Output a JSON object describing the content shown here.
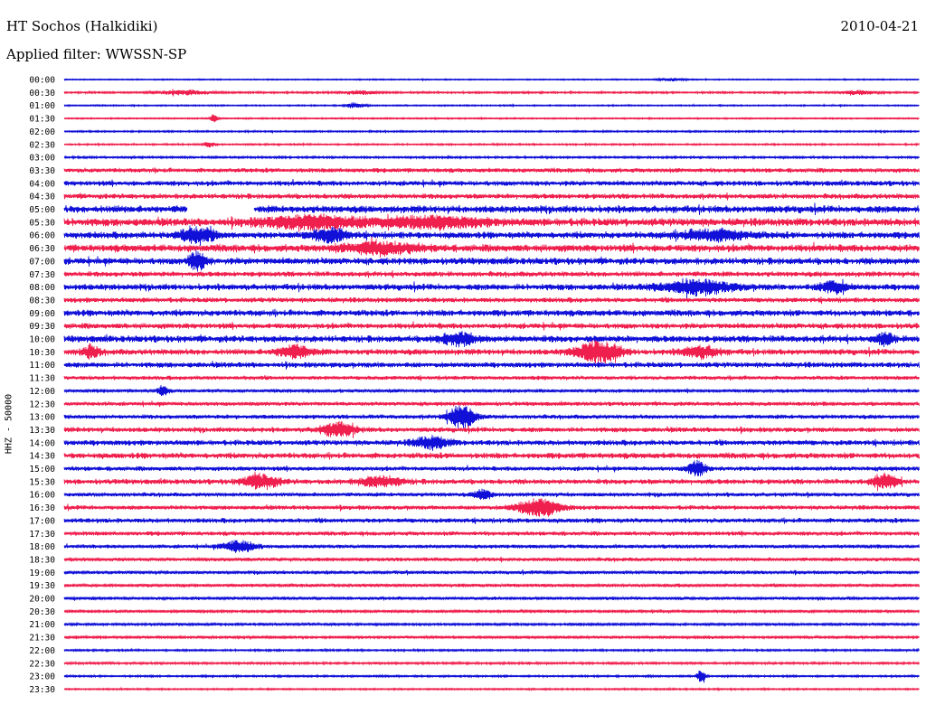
{
  "header": {
    "station": "HT Sochos (Halkidiki)",
    "date": "2010-04-21",
    "filter": "Applied filter: WWSSN-SP"
  },
  "colors": {
    "odd": "#1010d8",
    "even": "#f0204e"
  },
  "chart_data": {
    "type": "line",
    "title": "HT Sochos (Halkidiki)",
    "ylabel": "HHZ - 50000",
    "xlabel": "",
    "grid": false,
    "categories": [
      "00:00",
      "00:30",
      "01:00",
      "01:30",
      "02:00",
      "02:30",
      "03:00",
      "03:30",
      "04:00",
      "04:30",
      "05:00",
      "05:30",
      "06:00",
      "06:30",
      "07:00",
      "07:30",
      "08:00",
      "08:30",
      "09:00",
      "09:30",
      "10:00",
      "10:30",
      "11:00",
      "11:30",
      "12:00",
      "12:30",
      "13:00",
      "13:30",
      "14:00",
      "14:30",
      "15:00",
      "15:30",
      "16:00",
      "16:30",
      "17:00",
      "17:30",
      "18:00",
      "18:30",
      "19:00",
      "19:30",
      "20:00",
      "20:30",
      "21:00",
      "21:30",
      "22:00",
      "22:30",
      "23:00",
      "23:30"
    ],
    "noise_level": [
      0.5,
      0.8,
      0.6,
      0.6,
      0.7,
      0.7,
      0.9,
      2.0,
      2.3,
      2.3,
      3.2,
      3.5,
      3.0,
      3.3,
      3.0,
      2.3,
      2.8,
      2.2,
      2.8,
      2.5,
      3.0,
      2.6,
      2.4,
      1.8,
      1.6,
      1.8,
      1.9,
      2.2,
      2.4,
      2.6,
      2.0,
      2.3,
      1.8,
      1.9,
      2.1,
      1.9,
      1.6,
      1.7,
      1.5,
      1.5,
      1.4,
      1.2,
      1.2,
      1.2,
      0.8,
      1.0,
      0.8,
      0.7
    ],
    "gaps": [
      {
        "trace": "05:00",
        "from": 0.144,
        "to": 0.222
      }
    ],
    "events": [
      {
        "trace": "00:00",
        "at": 0.71,
        "amp": 1.5,
        "width": 0.015
      },
      {
        "trace": "00:30",
        "at": 0.14,
        "amp": 2.5,
        "width": 0.03
      },
      {
        "trace": "00:30",
        "at": 0.345,
        "amp": 2,
        "width": 0.02
      },
      {
        "trace": "00:30",
        "at": 0.93,
        "amp": 2,
        "width": 0.02
      },
      {
        "trace": "01:00",
        "at": 0.34,
        "amp": 3,
        "width": 0.01
      },
      {
        "trace": "01:30",
        "at": 0.175,
        "amp": 5,
        "width": 0.004
      },
      {
        "trace": "02:30",
        "at": 0.17,
        "amp": 3,
        "width": 0.006
      },
      {
        "trace": "05:30",
        "at": 0.29,
        "amp": 6,
        "width": 0.06
      },
      {
        "trace": "05:30",
        "at": 0.43,
        "amp": 5,
        "width": 0.06
      },
      {
        "trace": "06:00",
        "at": 0.155,
        "amp": 8,
        "width": 0.02
      },
      {
        "trace": "06:00",
        "at": 0.31,
        "amp": 7,
        "width": 0.02
      },
      {
        "trace": "06:00",
        "at": 0.76,
        "amp": 5,
        "width": 0.04
      },
      {
        "trace": "06:30",
        "at": 0.37,
        "amp": 6,
        "width": 0.04
      },
      {
        "trace": "07:00",
        "at": 0.155,
        "amp": 10,
        "width": 0.01
      },
      {
        "trace": "08:00",
        "at": 0.74,
        "amp": 7,
        "width": 0.04
      },
      {
        "trace": "08:00",
        "at": 0.9,
        "amp": 6,
        "width": 0.015
      },
      {
        "trace": "10:00",
        "at": 0.46,
        "amp": 6,
        "width": 0.02
      },
      {
        "trace": "10:00",
        "at": 0.96,
        "amp": 6,
        "width": 0.01
      },
      {
        "trace": "10:30",
        "at": 0.03,
        "amp": 6,
        "width": 0.01
      },
      {
        "trace": "10:30",
        "at": 0.27,
        "amp": 6,
        "width": 0.02
      },
      {
        "trace": "10:30",
        "at": 0.625,
        "amp": 11,
        "width": 0.025
      },
      {
        "trace": "10:30",
        "at": 0.745,
        "amp": 6,
        "width": 0.02
      },
      {
        "trace": "12:00",
        "at": 0.115,
        "amp": 6,
        "width": 0.005
      },
      {
        "trace": "13:00",
        "at": 0.465,
        "amp": 13,
        "width": 0.015
      },
      {
        "trace": "13:30",
        "at": 0.32,
        "amp": 7,
        "width": 0.02
      },
      {
        "trace": "14:00",
        "at": 0.43,
        "amp": 6,
        "width": 0.02
      },
      {
        "trace": "15:00",
        "at": 0.74,
        "amp": 9,
        "width": 0.01
      },
      {
        "trace": "15:30",
        "at": 0.23,
        "amp": 7,
        "width": 0.02
      },
      {
        "trace": "15:30",
        "at": 0.37,
        "amp": 5,
        "width": 0.025
      },
      {
        "trace": "15:30",
        "at": 0.96,
        "amp": 7,
        "width": 0.015
      },
      {
        "trace": "16:00",
        "at": 0.49,
        "amp": 5,
        "width": 0.01
      },
      {
        "trace": "16:30",
        "at": 0.555,
        "amp": 9,
        "width": 0.025
      },
      {
        "trace": "18:00",
        "at": 0.205,
        "amp": 6,
        "width": 0.02
      },
      {
        "trace": "23:00",
        "at": 0.745,
        "amp": 7,
        "width": 0.005
      }
    ]
  }
}
